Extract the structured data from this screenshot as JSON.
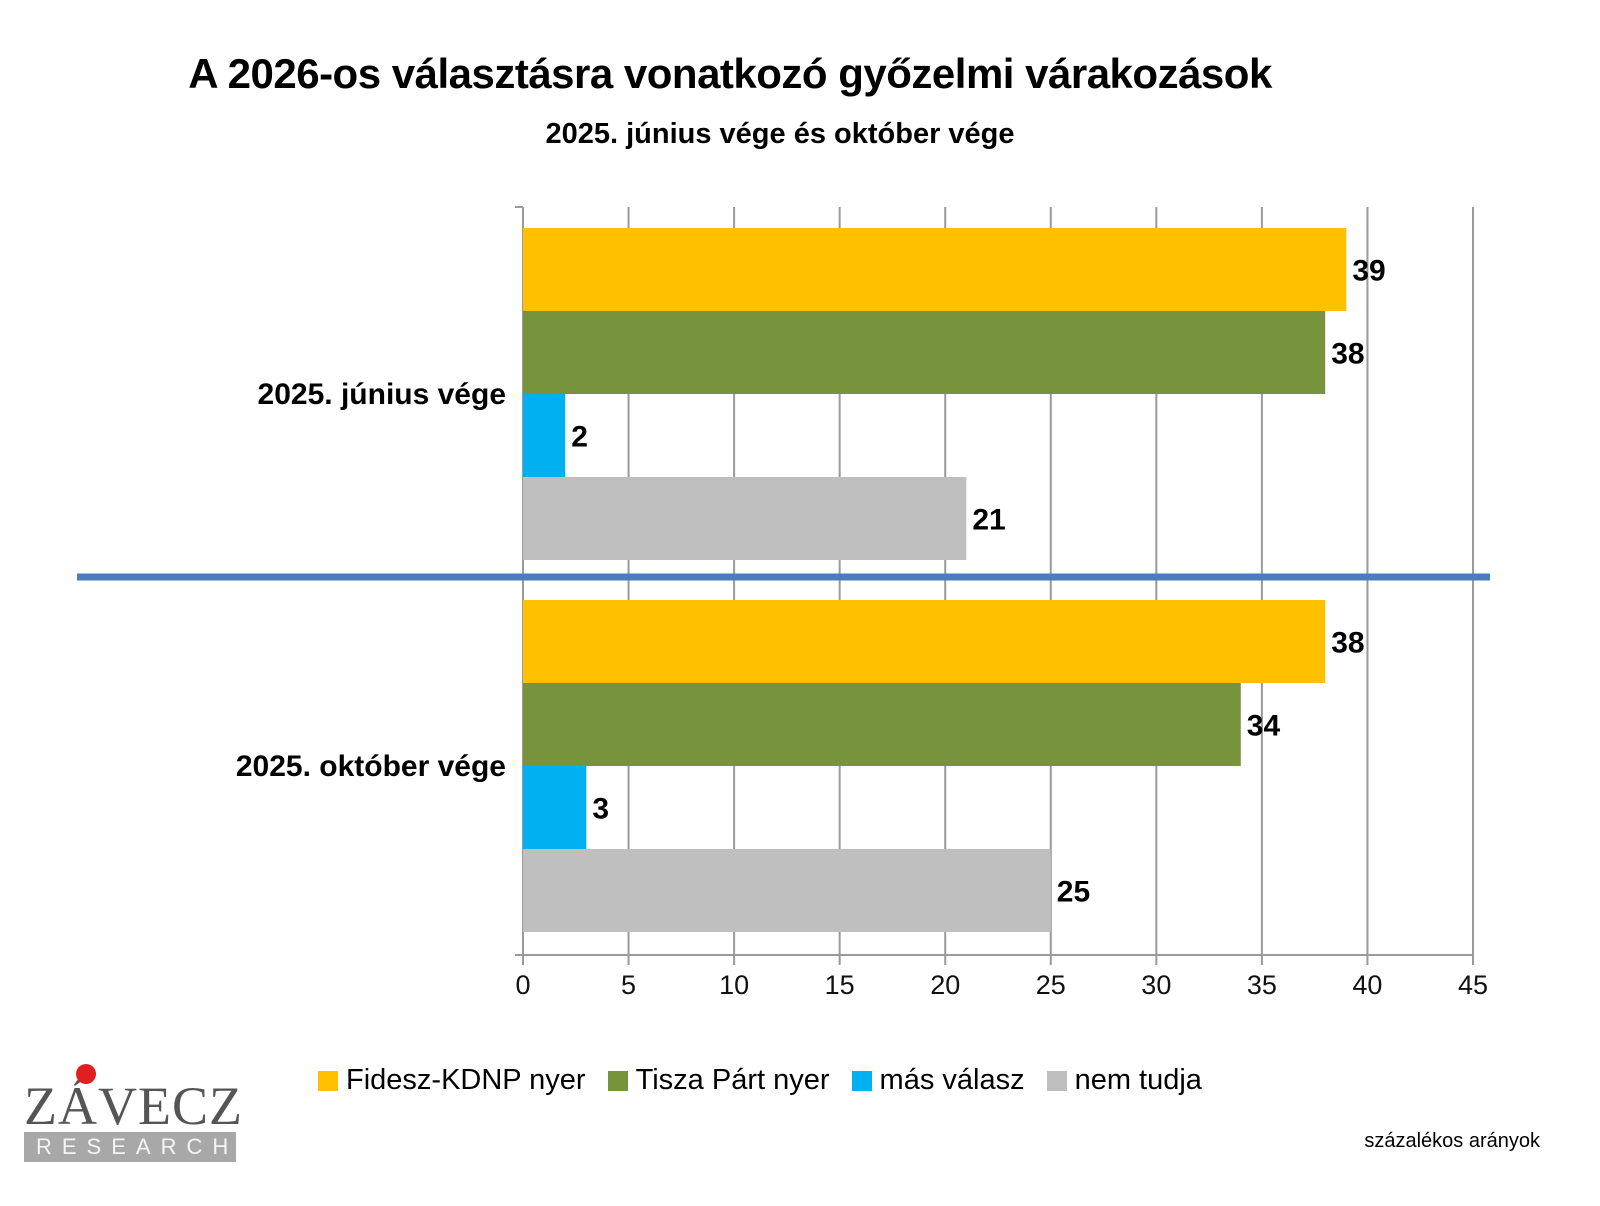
{
  "chart_data": {
    "type": "bar",
    "orientation": "horizontal",
    "title": "A 2026-os választásra vonatkozó győzelmi várakozások",
    "subtitle": "2025. június vége és október vége",
    "categories": [
      "2025. június vége",
      "2025. október vége"
    ],
    "series": [
      {
        "name": "Fidesz-KDNP nyer",
        "color": "#ffc000",
        "values": [
          39,
          38
        ]
      },
      {
        "name": "Tisza Párt nyer",
        "color": "#77933c",
        "values": [
          38,
          34
        ]
      },
      {
        "name": "más válasz",
        "color": "#00b0f0",
        "values": [
          2,
          3
        ]
      },
      {
        "name": "nem tudja",
        "color": "#bfbfbf",
        "values": [
          21,
          25
        ]
      }
    ],
    "xlabel": "",
    "ylabel": "",
    "xlim": [
      0,
      45
    ],
    "xticks": [
      0,
      5,
      10,
      15,
      20,
      25,
      30,
      35,
      40,
      45
    ],
    "grid": "vertical",
    "legend_position": "bottom",
    "separator_color": "#4a7ebb",
    "note": "százalékos arányok"
  },
  "logo": {
    "name": "ZÁVECZ",
    "sub": "RESEARCH"
  }
}
